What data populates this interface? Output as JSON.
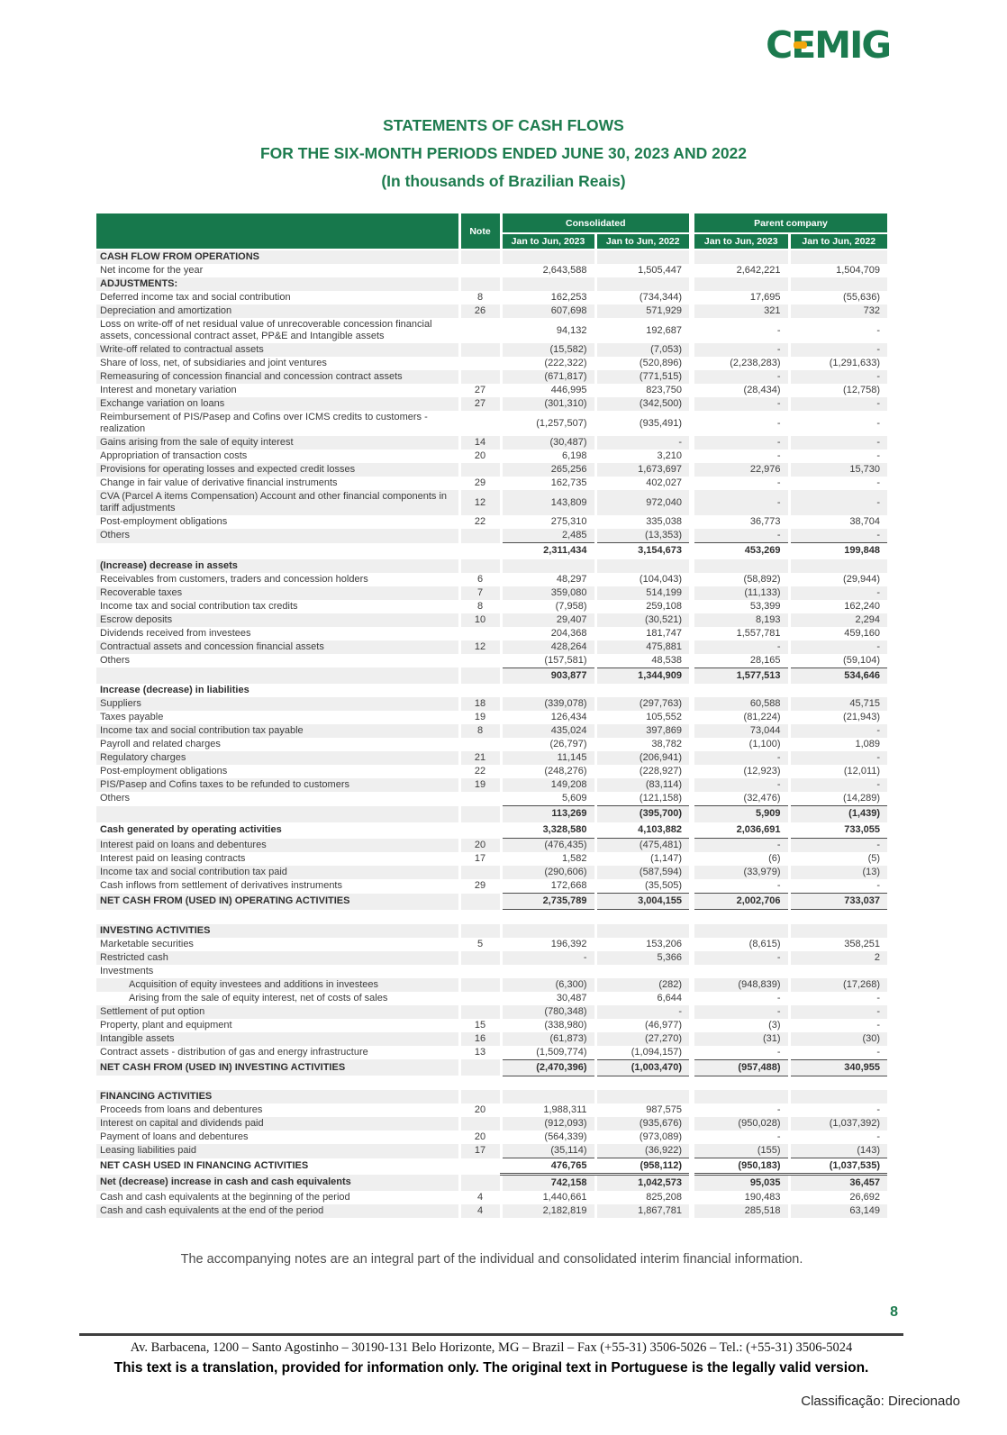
{
  "logo": {
    "c": "C",
    "e": "E",
    "rest": "MIG"
  },
  "title": {
    "line1": "STATEMENTS OF CASH FLOWS",
    "line2": "FOR THE SIX-MONTH PERIODS ENDED JUNE 30, 2023 AND 2022",
    "line3": "(In thousands of Brazilian Reais)"
  },
  "colors": {
    "brand_green": "#1b7a4e",
    "header_green": "#17784c",
    "stripe_gray": "#efefef",
    "logo_orange": "#f2a50c"
  },
  "table": {
    "headers": {
      "note": "Note",
      "group1": "Consolidated",
      "group2": "Parent company",
      "col1": "Jan to Jun, 2023",
      "col2": "Jan to Jun, 2022",
      "col3": "Jan to Jun, 2023",
      "col4": "Jan to Jun, 2022"
    },
    "rows": [
      {
        "label": "CASH FLOW FROM OPERATIONS",
        "type": "section"
      },
      {
        "label": "Net income for the year",
        "c23": "2,643,588",
        "c22": "1,505,447",
        "p23": "2,642,221",
        "p22": "1,504,709"
      },
      {
        "label": "ADJUSTMENTS:",
        "type": "section"
      },
      {
        "label": "Deferred income tax and social contribution",
        "note": "8",
        "c23": "162,253",
        "c22": "(734,344)",
        "p23": "17,695",
        "p22": "(55,636)"
      },
      {
        "label": "Depreciation and amortization",
        "note": "26",
        "c23": "607,698",
        "c22": "571,929",
        "p23": "321",
        "p22": "732"
      },
      {
        "label": "Loss on write-off of net residual value of unrecoverable concession financial assets, concessional contract asset,  PP&E and Intangible assets",
        "c23": "94,132",
        "c22": "192,687",
        "p23": "-",
        "p22": "-"
      },
      {
        "label": "Write-off related to contractual assets",
        "c23": "(15,582)",
        "c22": "(7,053)",
        "p23": "-",
        "p22": "-"
      },
      {
        "label": "Share of loss, net, of subsidiaries and joint ventures",
        "c23": "(222,322)",
        "c22": "(520,896)",
        "p23": "(2,238,283)",
        "p22": "(1,291,633)"
      },
      {
        "label": "Remeasuring of concession financial and concession contract assets",
        "c23": "(671,817)",
        "c22": "(771,515)",
        "p23": "-",
        "p22": "-"
      },
      {
        "label": "Interest and monetary variation",
        "note": "27",
        "c23": "446,995",
        "c22": "823,750",
        "p23": "(28,434)",
        "p22": "(12,758)"
      },
      {
        "label": "Exchange variation on loans",
        "note": "27",
        "c23": "(301,310)",
        "c22": "(342,500)",
        "p23": "-",
        "p22": "-"
      },
      {
        "label": "Reimbursement of  PIS/Pasep and Cofins over ICMS credits to customers - realization",
        "c23": "(1,257,507)",
        "c22": "(935,491)",
        "p23": "-",
        "p22": "-"
      },
      {
        "label": "Gains arising from the sale of equity interest",
        "note": "14",
        "c23": "(30,487)",
        "c22": "-",
        "p23": "-",
        "p22": "-"
      },
      {
        "label": "Appropriation of transaction costs",
        "note": "20",
        "c23": "6,198",
        "c22": "3,210",
        "p23": "-",
        "p22": "-"
      },
      {
        "label": "Provisions for operating losses and expected credit losses",
        "c23": "265,256",
        "c22": "1,673,697",
        "p23": "22,976",
        "p22": "15,730"
      },
      {
        "label": "Change in fair value of derivative financial instruments",
        "note": "29",
        "c23": "162,735",
        "c22": "402,027",
        "p23": "-",
        "p22": "-"
      },
      {
        "label": "CVA (Parcel A items Compensation) Account and other financial components in tariff adjustments",
        "note": "12",
        "c23": "143,809",
        "c22": "972,040",
        "p23": "-",
        "p22": "-"
      },
      {
        "label": "Post-employment obligations",
        "note": "22",
        "c23": "275,310",
        "c22": "335,038",
        "p23": "36,773",
        "p22": "38,704"
      },
      {
        "label": "Others",
        "c23": "2,485",
        "c22": "(13,353)",
        "p23": "-",
        "p22": "-",
        "ub": true
      },
      {
        "label": "",
        "type": "total",
        "c23": "2,311,434",
        "c22": "3,154,673",
        "p23": "453,269",
        "p22": "199,848"
      },
      {
        "label": "(Increase) decrease in assets",
        "type": "section"
      },
      {
        "label": "Receivables from customers, traders and concession holders",
        "note": "6",
        "c23": "48,297",
        "c22": "(104,043)",
        "p23": "(58,892)",
        "p22": "(29,944)"
      },
      {
        "label": "Recoverable taxes",
        "note": "7",
        "c23": "359,080",
        "c22": "514,199",
        "p23": "(11,133)",
        "p22": "-"
      },
      {
        "label": "Income tax and social contribution tax credits",
        "note": "8",
        "c23": "(7,958)",
        "c22": "259,108",
        "p23": "53,399",
        "p22": "162,240"
      },
      {
        "label": "Escrow deposits",
        "note": "10",
        "c23": "29,407",
        "c22": "(30,521)",
        "p23": "8,193",
        "p22": "2,294"
      },
      {
        "label": "Dividends received from investees",
        "c23": "204,368",
        "c22": "181,747",
        "p23": "1,557,781",
        "p22": "459,160"
      },
      {
        "label": "Contractual assets and concession financial assets",
        "note": "12",
        "c23": "428,264",
        "c22": "475,881",
        "p23": "-",
        "p22": "-"
      },
      {
        "label": "Others",
        "c23": "(157,581)",
        "c22": "48,538",
        "p23": "28,165",
        "p22": "(59,104)",
        "ub": true
      },
      {
        "label": "",
        "type": "total",
        "c23": "903,877",
        "c22": "1,344,909",
        "p23": "1,577,513",
        "p22": "534,646"
      },
      {
        "label": "Increase (decrease) in liabilities",
        "type": "section"
      },
      {
        "label": "Suppliers",
        "note": "18",
        "c23": "(339,078)",
        "c22": "(297,763)",
        "p23": "60,588",
        "p22": "45,715"
      },
      {
        "label": "Taxes payable",
        "note": "19",
        "c23": "126,434",
        "c22": "105,552",
        "p23": "(81,224)",
        "p22": "(21,943)"
      },
      {
        "label": "Income tax  and social contribution tax payable",
        "note": "8",
        "c23": "435,024",
        "c22": "397,869",
        "p23": "73,044",
        "p22": "-"
      },
      {
        "label": "Payroll and related charges",
        "c23": "(26,797)",
        "c22": "38,782",
        "p23": "(1,100)",
        "p22": "1,089"
      },
      {
        "label": "Regulatory charges",
        "note": "21",
        "c23": "11,145",
        "c22": "(206,941)",
        "p23": "-",
        "p22": "-"
      },
      {
        "label": "Post-employment obligations",
        "note": "22",
        "c23": "(248,276)",
        "c22": "(228,927)",
        "p23": "(12,923)",
        "p22": "(12,011)"
      },
      {
        "label": "PIS/Pasep and Cofins taxes to be refunded to customers",
        "note": "19",
        "c23": "149,208",
        "c22": "(83,114)",
        "p23": "-",
        "p22": "-"
      },
      {
        "label": "Others",
        "c23": "5,609",
        "c22": "(121,158)",
        "p23": "(32,476)",
        "p22": "(14,289)",
        "ub": true
      },
      {
        "label": "",
        "type": "total",
        "c23": "113,269",
        "c22": "(395,700)",
        "p23": "5,909",
        "p22": "(1,439)"
      },
      {
        "label": "Cash generated by operating activities",
        "type": "total",
        "c23": "3,328,580",
        "c22": "4,103,882",
        "p23": "2,036,691",
        "p22": "733,055",
        "ub": true
      },
      {
        "label": "Interest paid on loans and debentures",
        "note": "20",
        "c23": "(476,435)",
        "c22": "(475,481)",
        "p23": "-",
        "p22": "-"
      },
      {
        "label": "Interest paid on leasing contracts",
        "note": "17",
        "c23": "1,582",
        "c22": "(1,147)",
        "p23": "(6)",
        "p22": "(5)"
      },
      {
        "label": "Income tax and social contribution tax paid",
        "c23": "(290,606)",
        "c22": "(587,594)",
        "p23": "(33,979)",
        "p22": "(13)"
      },
      {
        "label": "Cash inflows from settlement of derivatives instruments",
        "note": "29",
        "c23": "172,668",
        "c22": "(35,505)",
        "p23": "-",
        "p22": "-",
        "ub": true
      },
      {
        "label": "NET CASH FROM (USED IN) OPERATING ACTIVITIES",
        "type": "total",
        "c23": "2,735,789",
        "c22": "3,004,155",
        "p23": "2,002,706",
        "p22": "733,037",
        "ub": true
      },
      {
        "type": "spacer"
      },
      {
        "label": "INVESTING ACTIVITIES",
        "type": "section"
      },
      {
        "label": "Marketable securities",
        "note": "5",
        "c23": "196,392",
        "c22": "153,206",
        "p23": "(8,615)",
        "p22": "358,251"
      },
      {
        "label": "Restricted cash",
        "c23": "-",
        "c22": "5,366",
        "p23": "-",
        "p22": "2"
      },
      {
        "label": "Investments"
      },
      {
        "label": "Acquisition of equity investees and additions in investees",
        "indent": true,
        "c23": "(6,300)",
        "c22": "(282)",
        "p23": "(948,839)",
        "p22": "(17,268)"
      },
      {
        "label": "Arising from the sale of equity interest, net of costs of sales",
        "indent": true,
        "c23": "30,487",
        "c22": "6,644",
        "p23": "-",
        "p22": "-"
      },
      {
        "label": "Settlement of put option",
        "c23": "(780,348)",
        "c22": "-",
        "p23": "-",
        "p22": "-"
      },
      {
        "label": "Property, plant and equipment",
        "note": "15",
        "c23": "(338,980)",
        "c22": "(46,977)",
        "p23": "(3)",
        "p22": "-"
      },
      {
        "label": "Intangible assets",
        "note": "16",
        "c23": "(61,873)",
        "c22": "(27,270)",
        "p23": "(31)",
        "p22": "(30)"
      },
      {
        "label": "Contract assets - distribution of gas and energy infrastructure",
        "note": "13",
        "c23": "(1,509,774)",
        "c22": "(1,094,157)",
        "p23": "-",
        "p22": "-",
        "ub": true
      },
      {
        "label": "NET CASH FROM (USED IN) INVESTING ACTIVITIES",
        "type": "total",
        "c23": "(2,470,396)",
        "c22": "(1,003,470)",
        "p23": "(957,488)",
        "p22": "340,955",
        "ub": true
      },
      {
        "type": "spacer"
      },
      {
        "label": "FINANCING ACTIVITIES",
        "type": "section"
      },
      {
        "label": "Proceeds from loans and debentures",
        "note": "20",
        "c23": "1,988,311",
        "c22": "987,575",
        "p23": "-",
        "p22": "-"
      },
      {
        "label": "Interest on capital and dividends paid",
        "c23": "(912,093)",
        "c22": "(935,676)",
        "p23": "(950,028)",
        "p22": "(1,037,392)"
      },
      {
        "label": "Payment of loans and debentures",
        "note": "20",
        "c23": "(564,339)",
        "c22": "(973,089)",
        "p23": "-",
        "p22": "-"
      },
      {
        "label": "Leasing liabilities paid",
        "note": "17",
        "c23": "(35,114)",
        "c22": "(36,922)",
        "p23": "(155)",
        "p22": "(143)",
        "ub": true
      },
      {
        "label": "NET CASH USED IN FINANCING ACTIVITIES",
        "type": "total",
        "c23": "476,765",
        "c22": "(958,112)",
        "p23": "(950,183)",
        "p22": "(1,037,535)",
        "dub": true
      },
      {
        "label": "Net (decrease) increase in cash and cash equivalents",
        "type": "total",
        "c23": "742,158",
        "c22": "1,042,573",
        "p23": "95,035",
        "p22": "36,457"
      },
      {
        "label": "Cash and cash equivalents at the beginning of the period",
        "note": "4",
        "c23": "1,440,661",
        "c22": "825,208",
        "p23": "190,483",
        "p22": "26,692"
      },
      {
        "label": "Cash and cash equivalents at the end of the period",
        "note": "4",
        "c23": "2,182,819",
        "c22": "1,867,781",
        "p23": "285,518",
        "p22": "63,149"
      }
    ]
  },
  "footnote": "The accompanying notes are an integral part of the individual and consolidated interim financial information.",
  "footer": {
    "page_number": "8",
    "address": "Av. Barbacena, 1200 – Santo Agostinho – 30190-131 Belo Horizonte, MG – Brazil – Fax (+55-31) 3506-5026 – Tel.: (+55-31) 3506-5024",
    "translation_note": "This text is a translation, provided for information only. The original text in Portuguese is the legally valid version.",
    "classification": "Classificação: Direcionado"
  }
}
